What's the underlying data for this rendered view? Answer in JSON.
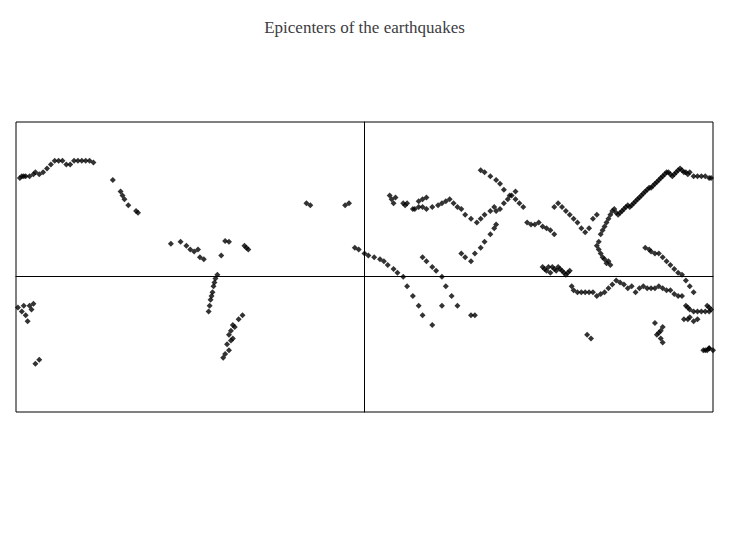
{
  "chart_data": {
    "type": "scatter",
    "title": "Epicenters of the earthquakes",
    "x": [
      -117,
      -118,
      -122,
      -124,
      -125,
      -126,
      -130,
      -70,
      -72,
      -74,
      -76,
      -77,
      -77.5,
      -78,
      -78.5,
      -79,
      -79.5,
      -80,
      -80.5,
      -70,
      -68,
      -69,
      -70,
      -71,
      -72,
      -73,
      -69,
      -67,
      -68,
      -65,
      -63,
      -175,
      -176,
      -177,
      -179,
      -174,
      -172,
      -100,
      -90,
      -88,
      -85,
      -83,
      -86,
      -92,
      -95,
      -60,
      -61,
      -62,
      -30,
      -28,
      -10,
      -8,
      13,
      15,
      14,
      16,
      20,
      21,
      22,
      25,
      26,
      28,
      30,
      32,
      35,
      28,
      30,
      32,
      38,
      40,
      42,
      44,
      46,
      48,
      50,
      52,
      55,
      58,
      60,
      62,
      65,
      67,
      68,
      70,
      72,
      74,
      76,
      78,
      80,
      82,
      84,
      86,
      88,
      90,
      92,
      94,
      96,
      98,
      100,
      101,
      102,
      103,
      104,
      105,
      106,
      107,
      108,
      110,
      112,
      114,
      116,
      118,
      120,
      122,
      124,
      126,
      128,
      130,
      132,
      134,
      136,
      138,
      140,
      142,
      144,
      146,
      148,
      150,
      152,
      154,
      156,
      158,
      160,
      162,
      164,
      166,
      167,
      168,
      170,
      172,
      174,
      176,
      178,
      179,
      178,
      177,
      125,
      126,
      127,
      124,
      123,
      122,
      121,
      120,
      121,
      122,
      123,
      124,
      125,
      126,
      127,
      128,
      129,
      130,
      131,
      132,
      133,
      134,
      135,
      136,
      137,
      138,
      139,
      140,
      141,
      142,
      143,
      144,
      145,
      146,
      147,
      148,
      149,
      150,
      151,
      152,
      153,
      154,
      155,
      156,
      157,
      158,
      159,
      160,
      161,
      162,
      163,
      164,
      165,
      166,
      167,
      168,
      170,
      172,
      174,
      176,
      178,
      179,
      -178,
      -177,
      -176,
      -175,
      -173,
      -171,
      -170,
      -168,
      -166,
      -164,
      -162,
      -160,
      -158,
      -156,
      -154,
      -152,
      -150,
      -148,
      -146,
      -144,
      -142,
      -140,
      95,
      97,
      98,
      99,
      96,
      94,
      93,
      92,
      145,
      147,
      148,
      150,
      152,
      154,
      156,
      158,
      160,
      162,
      164,
      166,
      168,
      170,
      60,
      62,
      65,
      68,
      70,
      72,
      75,
      78,
      110,
      112,
      114,
      116,
      118,
      120,
      108,
      106,
      104,
      102,
      100,
      98,
      -5,
      -3,
      0,
      2,
      5,
      8,
      10,
      12,
      15,
      17,
      20,
      22,
      25,
      28,
      30,
      35,
      40,
      55,
      57,
      180,
      178,
      176,
      -170,
      -168,
      165,
      167,
      168,
      170,
      172,
      153,
      154,
      152,
      151,
      153,
      154,
      150,
      175,
      177,
      178,
      -173,
      -171,
      115,
      117,
      30,
      32,
      35,
      37,
      40,
      42,
      45,
      48,
      50,
      52,
      55,
      57,
      60,
      62,
      65,
      67,
      68
    ],
    "values": [
      33,
      34,
      37,
      40,
      42,
      44,
      50,
      18,
      18.5,
      11,
      1,
      -1,
      -3,
      -5,
      -8,
      -10,
      -12,
      -15,
      -18,
      -30,
      -32,
      -33,
      -38,
      -35,
      -40,
      -42,
      -28,
      -26,
      -25,
      -22,
      -20,
      -20,
      -15,
      -18,
      -16,
      -23,
      -17,
      17,
      14,
      13,
      10,
      9,
      14,
      16,
      18,
      14,
      15,
      16,
      38,
      37,
      37,
      38,
      42,
      38,
      40,
      41,
      38,
      37,
      38,
      35,
      35,
      36,
      36,
      35,
      36,
      39,
      40,
      41,
      37,
      38,
      39,
      40,
      38,
      36,
      35,
      32,
      30,
      28,
      30,
      32,
      34,
      36,
      34,
      35,
      38,
      40,
      42,
      40,
      38,
      36,
      28,
      27,
      27,
      28,
      26,
      25,
      24,
      22,
      5,
      4,
      3,
      2,
      1,
      2,
      3,
      -5,
      -7,
      -8,
      -8,
      -8,
      -8,
      -8,
      -10,
      -9,
      -8,
      -6,
      -4,
      -2,
      -3,
      -4,
      -6,
      -5,
      -8,
      -6,
      -5,
      -6,
      -6,
      -6,
      -5,
      -6,
      -7,
      -7,
      -9,
      -10,
      -10,
      -15,
      -16,
      -17,
      -18,
      -18,
      -18,
      -18,
      -18,
      -17,
      -16,
      -15,
      7,
      8,
      6,
      9,
      10,
      12,
      14,
      16,
      18,
      22,
      24,
      26,
      28,
      30,
      32,
      34,
      35,
      33,
      32,
      33,
      34,
      35,
      36,
      37,
      36,
      37,
      38,
      39,
      40,
      41,
      42,
      43,
      44,
      45,
      46,
      46,
      47,
      48,
      49,
      50,
      51,
      52,
      53,
      54,
      54,
      53,
      52,
      53,
      54,
      55,
      56,
      55,
      54,
      54,
      53,
      54,
      52,
      52,
      52,
      52,
      51,
      51,
      51,
      52,
      52,
      52,
      52,
      53,
      54,
      53,
      54,
      56,
      58,
      60,
      60,
      60,
      58,
      58,
      60,
      60,
      60,
      60,
      60,
      59,
      5,
      5,
      4,
      3,
      2,
      3,
      4,
      5,
      15,
      14,
      13,
      12,
      12,
      10,
      8,
      6,
      4,
      2,
      1,
      -2,
      -5,
      -8,
      55,
      54,
      52,
      50,
      48,
      45,
      42,
      44,
      28,
      25,
      23,
      25,
      30,
      32,
      30,
      32,
      34,
      36,
      38,
      36,
      15,
      14,
      12,
      11,
      10,
      9,
      8,
      6,
      4,
      2,
      0,
      -5,
      -10,
      -15,
      -20,
      -25,
      -15,
      -20,
      -20,
      -38,
      -37,
      -38,
      -45,
      -43,
      -22,
      -22,
      -21,
      -23,
      -22,
      -28,
      -26,
      -29,
      -30,
      -32,
      -34,
      -24,
      -38,
      -38,
      -37,
      -15,
      -14,
      -30,
      -32,
      10,
      8,
      5,
      3,
      0,
      -5,
      -10,
      -15,
      12,
      10,
      8,
      12,
      15,
      18,
      22,
      25,
      27
    ],
    "xlim": [
      -180,
      180
    ],
    "ylim": [
      -70,
      80
    ],
    "color": "black",
    "marker": "diamond",
    "grid": false,
    "tick_labels": false
  }
}
